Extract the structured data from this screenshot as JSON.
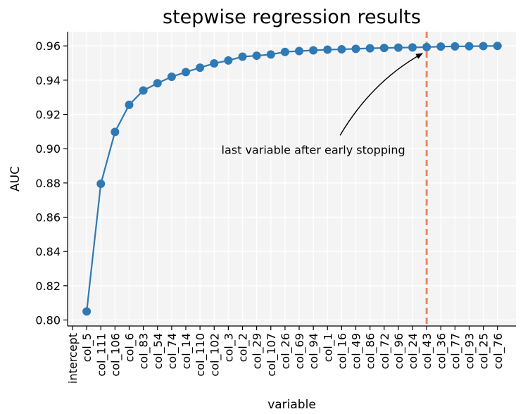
{
  "chart_data": {
    "type": "line",
    "title": "stepwise regression results",
    "xlabel": "variable",
    "ylabel": "AUC",
    "categories": [
      "intercept",
      "col_5",
      "col_111",
      "col_106",
      "col_6",
      "col_83",
      "col_54",
      "col_74",
      "col_14",
      "col_110",
      "col_102",
      "col_3",
      "col_2",
      "col_29",
      "col_107",
      "col_26",
      "col_69",
      "col_94",
      "col_1",
      "col_16",
      "col_49",
      "col_86",
      "col_72",
      "col_96",
      "col_24",
      "col_43",
      "col_36",
      "col_77",
      "col_93",
      "col_25",
      "col_76"
    ],
    "series": [
      {
        "values": [
          null,
          0.805,
          0.8795,
          0.9098,
          0.9256,
          0.934,
          0.9382,
          0.942,
          0.9447,
          0.9473,
          0.9498,
          0.9515,
          0.9537,
          0.9543,
          0.955,
          0.9565,
          0.957,
          0.9574,
          0.9578,
          0.958,
          0.9583,
          0.9586,
          0.9588,
          0.959,
          0.9591,
          0.9593,
          0.9596,
          0.9597,
          0.9598,
          0.9599,
          0.96
        ]
      }
    ],
    "yticks": [
      "0.80",
      "0.82",
      "0.84",
      "0.86",
      "0.88",
      "0.90",
      "0.92",
      "0.94",
      "0.96"
    ],
    "ylim": [
      0.7965,
      0.9683
    ],
    "grid": true,
    "cutoff_category": "col_43",
    "annotation": {
      "text": "last variable after early stopping",
      "target_category": "col_43",
      "target_value": 0.9593,
      "text_anchor_category": "col_94",
      "text_anchor_value": 0.9012
    },
    "colors": {
      "line": "#2f79b4",
      "cutoff": "#f4845c",
      "plot_bg": "#f4f4f4",
      "grid": "#ffffff"
    }
  }
}
